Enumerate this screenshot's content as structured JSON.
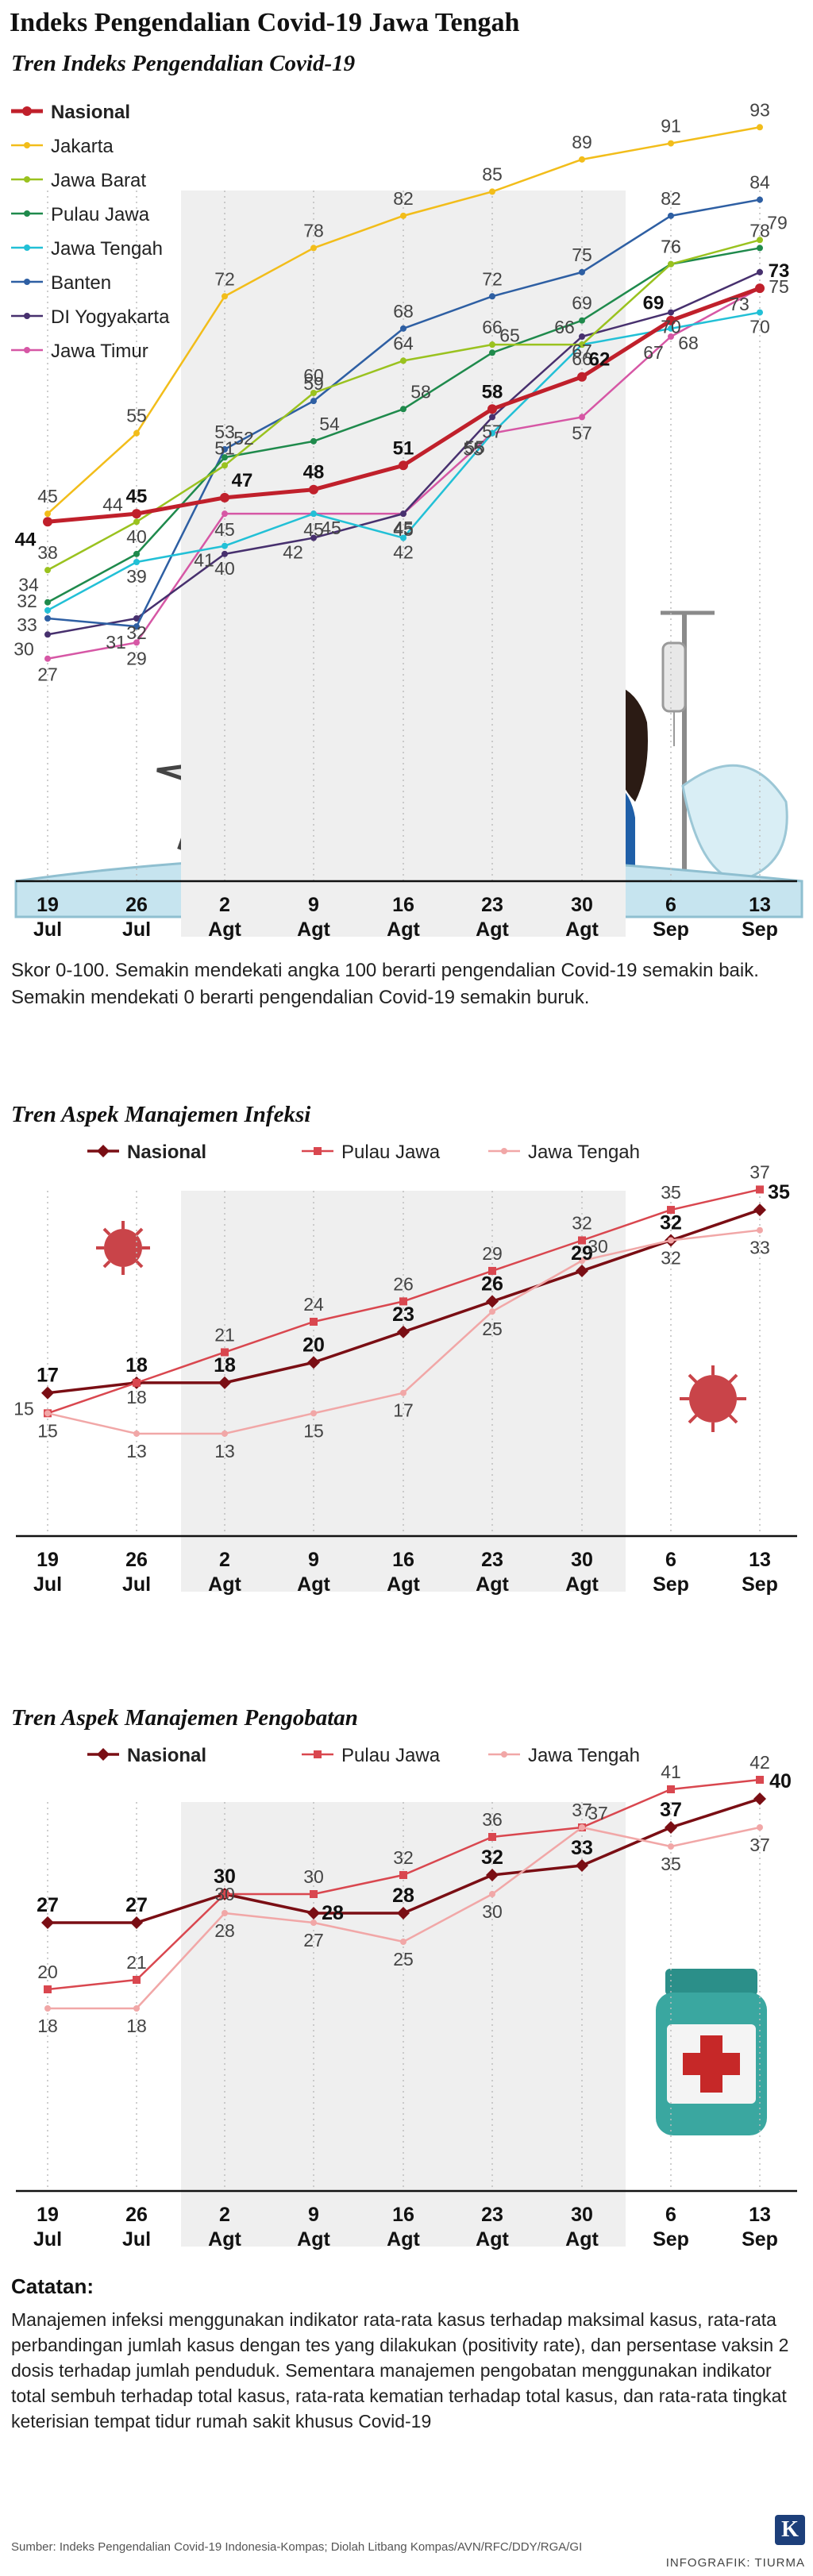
{
  "title": "Indeks Pengendalian Covid-19 Jawa Tengah",
  "x_labels": [
    [
      "19",
      "Jul"
    ],
    [
      "26",
      "Jul"
    ],
    [
      "2",
      "Agt"
    ],
    [
      "9",
      "Agt"
    ],
    [
      "16",
      "Agt"
    ],
    [
      "23",
      "Agt"
    ],
    [
      "30",
      "Agt"
    ],
    [
      "6",
      "Sep"
    ],
    [
      "13",
      "Sep"
    ]
  ],
  "colors": {
    "nasional": "#c0202b",
    "jakarta": "#f2bd1a",
    "jawa_barat": "#9ac21f",
    "pulau_jawa": "#1f8a4c",
    "jawa_tengah": "#22c0d6",
    "banten": "#2e5fa3",
    "diy": "#47306e",
    "jawa_timur": "#d657a5",
    "mgmt_nasional": "#7a0e14",
    "mgmt_pulau": "#d9474f",
    "mgmt_jateng": "#f1a7a7",
    "shade": "#efefef"
  },
  "scale_note": "Skor 0-100. Semakin mendekati angka 100 berarti pengendalian Covid-19 semakin baik. Semakin mendekati 0 berarti pengendalian Covid-19 semakin buruk.",
  "notes": {
    "heading": "Catatan:",
    "text": "Manajemen infeksi menggunakan indikator rata-rata kasus terhadap maksimal kasus, rata-rata perbandingan jumlah kasus dengan tes yang dilakukan (positivity rate), dan persentase vaksin 2 dosis terhadap jumlah penduduk. Sementara manajemen pengobatan menggunakan indikator total sembuh terhadap total kasus, rata-rata kematian terhadap total kasus, dan rata-rata tingkat keterisian tempat tidur rumah sakit khusus Covid-19"
  },
  "source": "Sumber: Indeks Pengendalian Covid-19 Indonesia-Kompas; Diolah Litbang Kompas/AVN/RFC/DDY/RGA/GI",
  "credit": "INFOGRAFIK: TIURMA",
  "logo_letter": "K",
  "chart_data": [
    {
      "type": "line",
      "title": "Tren Indeks Pengendalian Covid-19",
      "categories": [
        "19 Jul",
        "26 Jul",
        "2 Agt",
        "9 Agt",
        "16 Agt",
        "23 Agt",
        "30 Agt",
        "6 Sep",
        "13 Sep"
      ],
      "ylim": [
        25,
        95
      ],
      "series": [
        {
          "name": "Nasional",
          "key": "nasional",
          "values": [
            44,
            45,
            47,
            48,
            51,
            58,
            62,
            69,
            73
          ]
        },
        {
          "name": "Jakarta",
          "key": "jakarta",
          "values": [
            45,
            55,
            72,
            78,
            82,
            85,
            89,
            91,
            93
          ]
        },
        {
          "name": "Jawa Barat",
          "key": "jawa_barat",
          "values": [
            38,
            44,
            51,
            60,
            64,
            66,
            66,
            76,
            79
          ]
        },
        {
          "name": "Pulau Jawa",
          "key": "pulau_jawa",
          "values": [
            34,
            40,
            52,
            54,
            58,
            65,
            69,
            76,
            78
          ]
        },
        {
          "name": "Jawa Tengah",
          "key": "jawa_tengah",
          "values": [
            33,
            39,
            41,
            45,
            42,
            55,
            66,
            68,
            70
          ]
        },
        {
          "name": "Banten",
          "key": "banten",
          "values": [
            32,
            31,
            53,
            59,
            68,
            72,
            75,
            82,
            84
          ]
        },
        {
          "name": "DI Yogyakarta",
          "key": "diy",
          "values": [
            30,
            32,
            40,
            42,
            45,
            57,
            67,
            70,
            75
          ]
        },
        {
          "name": "Jawa Timur",
          "key": "jawa_timur",
          "values": [
            27,
            29,
            45,
            45,
            45,
            55,
            57,
            67,
            73
          ]
        }
      ]
    },
    {
      "type": "line",
      "title": "Tren Aspek Manajemen Infeksi",
      "categories": [
        "19 Jul",
        "26 Jul",
        "2 Agt",
        "9 Agt",
        "16 Agt",
        "23 Agt",
        "30 Agt",
        "6 Sep",
        "13 Sep"
      ],
      "ylim": [
        8,
        40
      ],
      "series": [
        {
          "name": "Nasional",
          "key": "mgmt_nasional",
          "values": [
            17,
            18,
            18,
            20,
            23,
            26,
            29,
            32,
            35
          ]
        },
        {
          "name": "Pulau Jawa",
          "key": "mgmt_pulau",
          "values": [
            15,
            18,
            21,
            24,
            26,
            29,
            32,
            35,
            37
          ]
        },
        {
          "name": "Jawa Tengah",
          "key": "mgmt_jateng",
          "values": [
            15,
            13,
            13,
            15,
            17,
            25,
            30,
            32,
            33
          ]
        }
      ]
    },
    {
      "type": "line",
      "title": "Tren Aspek Manajemen Pengobatan",
      "categories": [
        "19 Jul",
        "26 Jul",
        "2 Agt",
        "9 Agt",
        "16 Agt",
        "23 Agt",
        "30 Agt",
        "6 Sep",
        "13 Sep"
      ],
      "ylim": [
        14,
        44
      ],
      "series": [
        {
          "name": "Nasional",
          "key": "mgmt_nasional",
          "values": [
            27,
            27,
            30,
            28,
            28,
            32,
            33,
            37,
            40
          ]
        },
        {
          "name": "Pulau Jawa",
          "key": "mgmt_pulau",
          "values": [
            20,
            21,
            30,
            30,
            32,
            36,
            37,
            41,
            42
          ]
        },
        {
          "name": "Jawa Tengah",
          "key": "mgmt_jateng",
          "values": [
            18,
            18,
            28,
            27,
            25,
            30,
            37,
            35,
            37
          ]
        }
      ]
    }
  ]
}
